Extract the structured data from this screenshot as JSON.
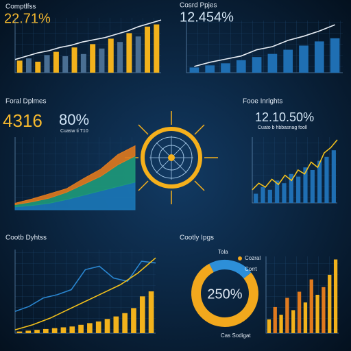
{
  "chart_data": [
    {
      "type": "combo",
      "title": "Comptlfss",
      "value_text": "22.71%",
      "ylim": [
        0,
        100
      ],
      "grid": true,
      "series": [
        {
          "kind": "bar",
          "colors": [
            "#f2b21c",
            "#4a6f93",
            "#f2b21c",
            "#4a6f93",
            "#f2b21c",
            "#4a6f93",
            "#f2b21c",
            "#4a6f93",
            "#f2b21c",
            "#4a6f93",
            "#f2b21c",
            "#4a6f93",
            "#f2b21c",
            "#4a6f93",
            "#f2b21c",
            "#f2b21c"
          ],
          "values": [
            22,
            26,
            20,
            32,
            38,
            30,
            46,
            34,
            52,
            44,
            62,
            56,
            72,
            66,
            84,
            88
          ]
        },
        {
          "kind": "line",
          "color": "#e8eef5",
          "values": [
            24,
            30,
            36,
            40,
            46,
            50,
            56,
            60,
            64,
            70,
            76,
            84,
            90,
            96
          ]
        }
      ]
    },
    {
      "type": "combo",
      "title": "Cosrd Ppjes",
      "value_text": "12.454%",
      "ylim": [
        0,
        100
      ],
      "grid": true,
      "series": [
        {
          "kind": "bar",
          "colors": [
            "#1f6fb3",
            "#1f6fb3",
            "#1f6fb3",
            "#1f6fb3",
            "#1f6fb3",
            "#1f6fb3",
            "#1f6fb3",
            "#1f6fb3",
            "#1f6fb3",
            "#1f6fb3"
          ],
          "values": [
            10,
            14,
            18,
            24,
            30,
            36,
            44,
            52,
            60,
            66
          ]
        },
        {
          "kind": "line",
          "color": "#e8eef5",
          "values": [
            12,
            20,
            26,
            32,
            44,
            50,
            62,
            70,
            80,
            92
          ]
        }
      ]
    },
    {
      "type": "area",
      "title": "Foral Dplmes",
      "value_text": "4316",
      "value_text2": "80%",
      "subtitle": "Cuasw ti T10",
      "ylim": [
        0,
        100
      ],
      "grid": true,
      "series": [
        {
          "kind": "area",
          "color": "#1b78b8",
          "values": [
            4,
            6,
            9,
            14,
            20,
            26,
            32,
            38
          ]
        },
        {
          "kind": "area",
          "color": "#1e9a7a",
          "values": [
            3,
            5,
            7,
            10,
            15,
            20,
            30,
            36
          ]
        },
        {
          "kind": "area",
          "color": "#e07a1e",
          "values": [
            2,
            4,
            6,
            5,
            8,
            10,
            14,
            14
          ]
        }
      ]
    },
    {
      "type": "combo",
      "title": "Fooe Inrlghts",
      "value_text": "12.10.50%",
      "subtitle": "Cuato b hbbasnag fooll",
      "ylim": [
        0,
        100
      ],
      "grid": true,
      "series": [
        {
          "kind": "bar",
          "colors": [
            "#1f6fb3",
            "#1f6fb3",
            "#1f6fb3",
            "#1f6fb3",
            "#1f6fb3",
            "#1f6fb3",
            "#1f6fb3",
            "#1f6fb3",
            "#1f6fb3",
            "#1f6fb3",
            "#1f6fb3",
            "#1f6fb3"
          ],
          "values": [
            14,
            24,
            20,
            34,
            30,
            44,
            40,
            54,
            50,
            64,
            70,
            80
          ]
        },
        {
          "kind": "line",
          "color": "#f5c21b",
          "values": [
            20,
            30,
            24,
            36,
            28,
            42,
            34,
            50,
            44,
            62,
            54,
            76,
            84,
            96
          ]
        }
      ]
    },
    {
      "type": "combo",
      "title": "Cootb Dyhtss",
      "ylim": [
        0,
        100
      ],
      "grid": true,
      "series": [
        {
          "kind": "bar",
          "colors": [
            "#f2b21c",
            "#f2b21c",
            "#f2b21c",
            "#f2b21c",
            "#f2b21c",
            "#f2b21c",
            "#f2b21c",
            "#f2b21c",
            "#f2b21c",
            "#f2b21c",
            "#f2b21c",
            "#f2b21c",
            "#f2b21c",
            "#f2b21c",
            "#f2b21c",
            "#f2b21c"
          ],
          "values": [
            2,
            3,
            4,
            5,
            6,
            7,
            8,
            10,
            12,
            14,
            17,
            20,
            24,
            30,
            44,
            50
          ]
        },
        {
          "kind": "line",
          "color": "#2a86d0",
          "values": [
            26,
            32,
            42,
            46,
            52,
            76,
            80,
            66,
            62,
            86,
            84
          ]
        },
        {
          "kind": "line",
          "color": "#f5c21b",
          "values": [
            4,
            10,
            18,
            28,
            38,
            48,
            58,
            72,
            90
          ]
        }
      ]
    },
    {
      "type": "pie",
      "title": "Cootly Ipgs",
      "label": "Tola",
      "center_text": "250%",
      "note": "Cas Sodigat",
      "series": [
        {
          "name": "Cozral",
          "color": "#f2a81d",
          "values": [
            78
          ]
        },
        {
          "name": "Corrt",
          "color": "#2d8fd8",
          "values": [
            22
          ]
        }
      ]
    },
    {
      "type": "combo",
      "ylim": [
        0,
        100
      ],
      "grid": true,
      "series": [
        {
          "kind": "bar",
          "colors": [
            "#f2b21c",
            "#e07a1e",
            "#f2b21c",
            "#e07a1e",
            "#f2b21c",
            "#e07a1e",
            "#f2b21c",
            "#e07a1e",
            "#f2b21c",
            "#e07a1e",
            "#f2b21c",
            "#f2b21c"
          ],
          "values": [
            18,
            34,
            24,
            46,
            30,
            54,
            40,
            70,
            50,
            60,
            76,
            96
          ]
        }
      ]
    }
  ]
}
